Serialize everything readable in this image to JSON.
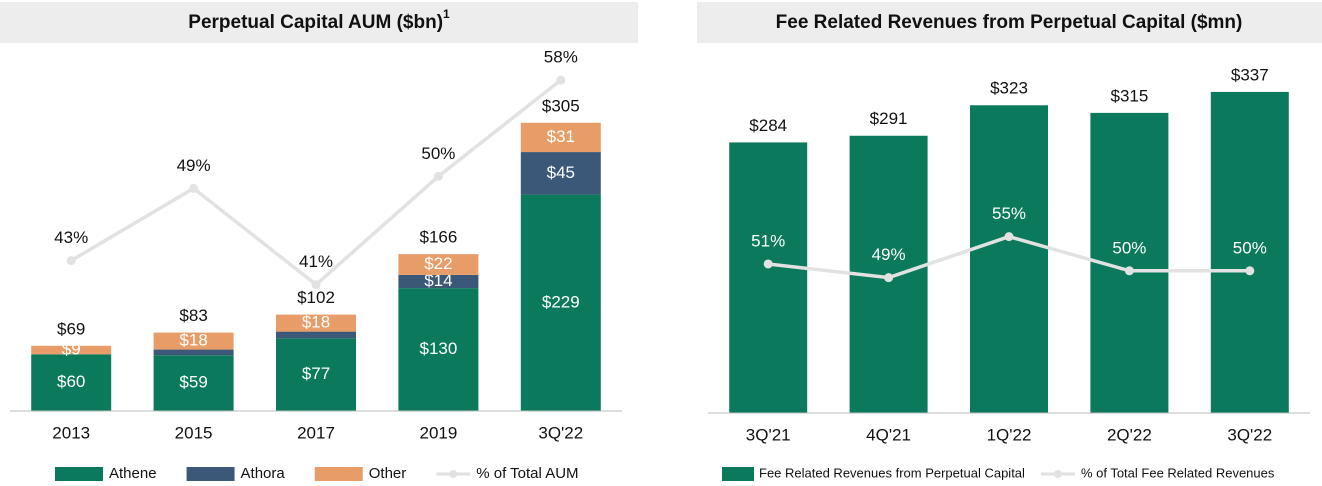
{
  "chart_data": [
    {
      "type": "bar",
      "stacked": true,
      "title": "Perpetual Capital AUM ($bn)",
      "title_footnote": "1",
      "categories": [
        "2013",
        "2015",
        "2017",
        "2019",
        "3Q'22"
      ],
      "series": [
        {
          "name": "Athene",
          "color": "#0b7a5c",
          "values": [
            60,
            59,
            77,
            130,
            229
          ],
          "value_labels": [
            "$60",
            "$59",
            "$77",
            "$130",
            "$229"
          ]
        },
        {
          "name": "Athora",
          "color": "#3b5878",
          "values": [
            0,
            6,
            7,
            14,
            45
          ],
          "value_labels": [
            null,
            null,
            null,
            "$14",
            "$45"
          ]
        },
        {
          "name": "Other",
          "color": "#e89d68",
          "values": [
            9,
            18,
            18,
            22,
            31
          ],
          "value_labels": [
            "$9",
            "$18",
            "$18",
            "$22",
            "$31"
          ]
        },
        {
          "name": "% of Total AUM",
          "type": "line",
          "axis": "y2",
          "color": "#e2e2e2",
          "label_color": "#111111",
          "values": [
            43,
            49,
            41,
            50,
            58
          ],
          "value_labels": [
            "43%",
            "49%",
            "41%",
            "50%",
            "58%"
          ]
        }
      ],
      "total_labels": [
        "$69",
        "$83",
        "$102",
        "$166",
        "$305"
      ],
      "ylim": [
        0,
        382
      ],
      "y2lim": [
        30.5,
        60.5
      ]
    },
    {
      "type": "bar",
      "stacked": false,
      "title": "Fee Related Revenues from Perpetual Capital ($mn)",
      "categories": [
        "3Q'21",
        "4Q'21",
        "1Q'22",
        "2Q'22",
        "3Q'22"
      ],
      "series": [
        {
          "name": "Fee Related Revenues from Perpetual Capital",
          "color": "#0b7a5c",
          "values": [
            284,
            291,
            323,
            315,
            337
          ],
          "value_labels": [
            "$284",
            "$291",
            "$323",
            "$315",
            "$337"
          ]
        },
        {
          "name": "% of Total Fee Related Revenues",
          "type": "line",
          "axis": "y2",
          "color": "#e2e2e2",
          "label_color": "#ffffff",
          "values": [
            51,
            49,
            55,
            50,
            50
          ],
          "value_labels": [
            "51%",
            "49%",
            "55%",
            "50%",
            "50%"
          ]
        }
      ],
      "ylim": [
        0,
        381
      ],
      "y2lim": [
        29.2,
        82.3
      ]
    }
  ]
}
